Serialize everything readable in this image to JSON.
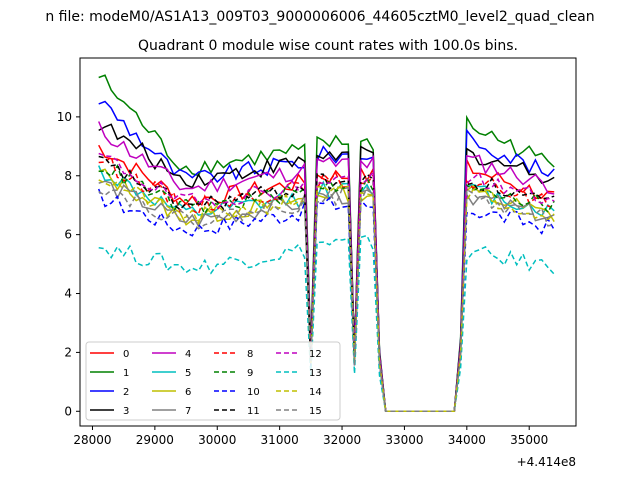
{
  "figure": {
    "suptitle": "n file: modeM0/AS1A13_009T03_9000006006_44605cztM0_level2_quad_clean",
    "title": "Quadrant 0 module wise count rates with 100.0s bins."
  },
  "chart_data": {
    "type": "line",
    "title": "Quadrant 0 module wise count rates with 100.0s bins.",
    "xlabel": "",
    "ylabel": "",
    "x_offset_label": "+4.414e8",
    "xlim": [
      27800,
      35750
    ],
    "ylim": [
      -0.5,
      12.0
    ],
    "x_ticks": [
      28000,
      29000,
      30000,
      31000,
      32000,
      33000,
      34000,
      35000
    ],
    "y_ticks": [
      0,
      2,
      4,
      6,
      8,
      10
    ],
    "grid": false,
    "legend_position": "lower-left",
    "x_segments": [
      [
        28100,
        31450
      ],
      [
        31550,
        32150
      ],
      [
        32250,
        32550
      ],
      [
        32650,
        33850
      ],
      [
        33950,
        35450
      ]
    ],
    "series": [
      {
        "name": "0",
        "color": "#ff0000",
        "dash": "solid",
        "base": 7.2,
        "start": 9.0,
        "post": 8.3
      },
      {
        "name": "1",
        "color": "#008000",
        "dash": "solid",
        "base": 8.3,
        "start": 11.4,
        "post": 9.8
      },
      {
        "name": "2",
        "color": "#0000ff",
        "dash": "solid",
        "base": 7.9,
        "start": 10.6,
        "post": 9.4
      },
      {
        "name": "3",
        "color": "#000000",
        "dash": "solid",
        "base": 7.9,
        "start": 9.8,
        "post": 8.8
      },
      {
        "name": "4",
        "color": "#bf00bf",
        "dash": "solid",
        "base": 7.6,
        "start": 9.6,
        "post": 8.6
      },
      {
        "name": "5",
        "color": "#00bfbf",
        "dash": "solid",
        "base": 6.7,
        "start": 8.2,
        "post": 7.6
      },
      {
        "name": "6",
        "color": "#bfbf00",
        "dash": "solid",
        "base": 6.6,
        "start": 8.1,
        "post": 7.5
      },
      {
        "name": "7",
        "color": "#808080",
        "dash": "solid",
        "base": 6.5,
        "start": 7.8,
        "post": 7.4
      },
      {
        "name": "8",
        "color": "#ff0000",
        "dash": "dashed",
        "base": 7.0,
        "start": 8.6,
        "post": 7.9
      },
      {
        "name": "9",
        "color": "#008000",
        "dash": "dashed",
        "base": 6.9,
        "start": 8.4,
        "post": 7.8
      },
      {
        "name": "10",
        "color": "#0000ff",
        "dash": "dashed",
        "base": 6.2,
        "start": 7.3,
        "post": 6.9
      },
      {
        "name": "11",
        "color": "#000000",
        "dash": "dashed",
        "base": 7.0,
        "start": 8.5,
        "post": 7.9
      },
      {
        "name": "12",
        "color": "#bf00bf",
        "dash": "dashed",
        "base": 7.1,
        "start": 8.7,
        "post": 8.0
      },
      {
        "name": "13",
        "color": "#00bfbf",
        "dash": "dashed",
        "base": 4.9,
        "start": 5.6,
        "post": 5.4
      },
      {
        "name": "14",
        "color": "#bfbf00",
        "dash": "dashed",
        "base": 6.6,
        "start": 8.0,
        "post": 7.5
      },
      {
        "name": "15",
        "color": "#808080",
        "dash": "dashed",
        "base": 6.5,
        "start": 7.7,
        "post": 7.3
      }
    ]
  }
}
